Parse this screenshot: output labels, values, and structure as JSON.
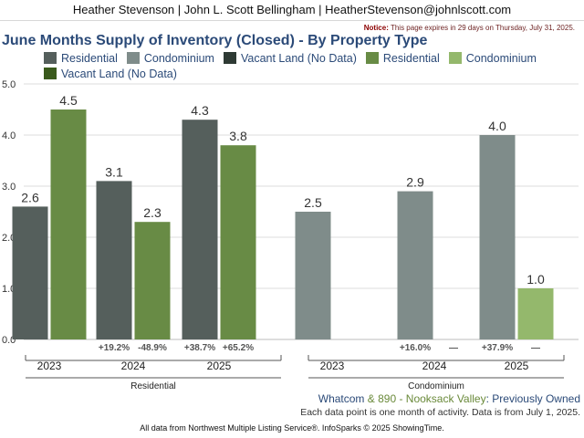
{
  "header": {
    "agent_line": "Heather Stevenson | John L. Scott Bellingham | HeatherStevenson@johnlscott.com",
    "notice_label": "Notice:",
    "notice_text": "This page expires in 29 days on Thursday, July 31, 2025."
  },
  "colors": {
    "residential_dark": "#555f5c",
    "condominium_dark": "#7f8c8a",
    "vacant_dark": "#2e3a34",
    "residential_green": "#688b45",
    "condominium_green": "#94b86c",
    "vacant_green": "#3a5a1c"
  },
  "legend": [
    {
      "label": "Residential",
      "color": "#555f5c"
    },
    {
      "label": "Condominium",
      "color": "#7f8c8a"
    },
    {
      "label": "Vacant Land (No Data)",
      "color": "#2e3a34"
    },
    {
      "label": "Residential",
      "color": "#688b45"
    },
    {
      "label": "Condominium",
      "color": "#94b86c"
    },
    {
      "label": "Vacant Land (No Data)",
      "color": "#3a5a1c"
    }
  ],
  "chart_data": {
    "type": "bar",
    "title": "June Months Supply of Inventory (Closed) - By Property Type",
    "ylim": [
      0,
      5
    ],
    "yticks": [
      "0.0",
      "1.0",
      "2.0",
      "3.0",
      "4.0",
      "5.0"
    ],
    "grid": true,
    "groups": [
      {
        "name": "Residential",
        "years": [
          {
            "year": "2023",
            "bars": [
              {
                "series": "Whatcom",
                "value": 2.6,
                "label": "2.6"
              },
              {
                "series": "890 - Nooksack Valley",
                "value": 4.5,
                "label": "4.5"
              }
            ],
            "changes": [
              "",
              ""
            ]
          },
          {
            "year": "2024",
            "bars": [
              {
                "series": "Whatcom",
                "value": 3.1,
                "label": "3.1"
              },
              {
                "series": "890 - Nooksack Valley",
                "value": 2.3,
                "label": "2.3"
              }
            ],
            "changes": [
              "+19.2%",
              "-48.9%"
            ]
          },
          {
            "year": "2025",
            "bars": [
              {
                "series": "Whatcom",
                "value": 4.3,
                "label": "4.3"
              },
              {
                "series": "890 - Nooksack Valley",
                "value": 3.8,
                "label": "3.8"
              }
            ],
            "changes": [
              "+38.7%",
              "+65.2%"
            ]
          }
        ]
      },
      {
        "name": "Condominium",
        "years": [
          {
            "year": "2023",
            "bars": [
              {
                "series": "Whatcom",
                "value": 2.5,
                "label": "2.5"
              },
              {
                "series": "890 - Nooksack Valley",
                "value": null,
                "label": ""
              }
            ],
            "changes": [
              "",
              ""
            ]
          },
          {
            "year": "2024",
            "bars": [
              {
                "series": "Whatcom",
                "value": 2.9,
                "label": "2.9"
              },
              {
                "series": "890 - Nooksack Valley",
                "value": null,
                "label": ""
              }
            ],
            "changes": [
              "+16.0%",
              "—"
            ]
          },
          {
            "year": "2025",
            "bars": [
              {
                "series": "Whatcom",
                "value": 4.0,
                "label": "4.0"
              },
              {
                "series": "890 - Nooksack Valley",
                "value": 1.0,
                "label": "1.0"
              }
            ],
            "changes": [
              "+37.9%",
              "—"
            ]
          }
        ]
      }
    ]
  },
  "footer": {
    "region_part1": "Whatcom",
    "region_amp": " & ",
    "region_part2": "890 - Nooksack Valley",
    "region_part3": ": Previously Owned",
    "note": "Each data point is one month of activity. Data is from July 1, 2025.",
    "source": "All data from Northwest Multiple Listing Service®. InfoSparks © 2025 ShowingTime."
  }
}
